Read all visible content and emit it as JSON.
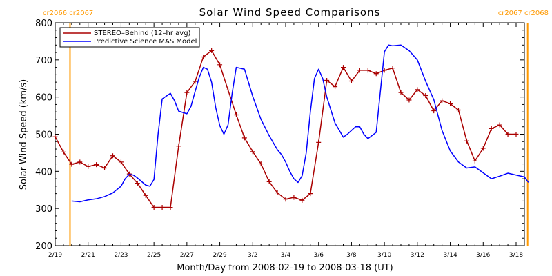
{
  "chart_data": {
    "type": "line",
    "title": "Solar Wind Speed Comparisons",
    "xlabel": "Month/Day from 2008-02-19 to 2008-03-18 (UT)",
    "ylabel": "Solar Wind Speed (km/s)",
    "xlim": [
      0,
      28
    ],
    "ylim": [
      200,
      800
    ],
    "x_ticks": [
      {
        "day": 0,
        "label": "2/19"
      },
      {
        "day": 2,
        "label": "2/21"
      },
      {
        "day": 4,
        "label": "2/23"
      },
      {
        "day": 6,
        "label": "2/25"
      },
      {
        "day": 8,
        "label": "2/27"
      },
      {
        "day": 10,
        "label": "2/29"
      },
      {
        "day": 12,
        "label": "3/2"
      },
      {
        "day": 14,
        "label": "3/4"
      },
      {
        "day": 16,
        "label": "3/6"
      },
      {
        "day": 18,
        "label": "3/8"
      },
      {
        "day": 20,
        "label": "3/10"
      },
      {
        "day": 22,
        "label": "3/12"
      },
      {
        "day": 24,
        "label": "3/14"
      },
      {
        "day": 26,
        "label": "3/16"
      },
      {
        "day": 28,
        "label": "3/18"
      }
    ],
    "y_ticks": [
      200,
      300,
      400,
      500,
      600,
      700,
      800
    ],
    "legend_position": "top-left",
    "carrington_markers": [
      {
        "day": 0.9,
        "left_label": "cr2066",
        "right_label": "cr2067",
        "label_side": "top-left",
        "color": "#ff9900"
      },
      {
        "day": 28.7,
        "left_label": "cr2067",
        "right_label": "cr2068",
        "label_side": "top-right",
        "color": "#ff9900"
      }
    ],
    "series": [
      {
        "name": "STEREO–Behind (12–hr avg)",
        "color": "#aa0000",
        "markers": true,
        "x": [
          0.0,
          0.5,
          1.0,
          1.5,
          2.0,
          2.5,
          3.0,
          3.5,
          4.0,
          4.5,
          5.0,
          5.5,
          6.0,
          6.5,
          7.0,
          7.5,
          8.0,
          8.5,
          9.0,
          9.5,
          10.0,
          10.5,
          11.0,
          11.5,
          12.0,
          12.5,
          13.0,
          13.5,
          14.0,
          14.5,
          15.0,
          15.5,
          16.0,
          16.5,
          17.0,
          17.5,
          18.0,
          18.5,
          19.0,
          19.5,
          20.0,
          20.5,
          21.0,
          21.5,
          22.0,
          22.5,
          23.0,
          23.5,
          24.0,
          24.5,
          25.0,
          25.5,
          26.0,
          26.5,
          27.0,
          27.5,
          28.0,
          28.5
        ],
        "values": [
          493,
          452,
          419,
          425,
          413,
          418,
          409,
          442,
          425,
          393,
          368,
          335,
          303,
          303,
          303,
          468,
          612,
          642,
          708,
          725,
          687,
          619,
          552,
          490,
          453,
          420,
          372,
          342,
          325,
          330,
          322,
          340,
          478,
          645,
          628,
          680,
          643,
          672,
          672,
          663,
          672,
          678,
          612,
          592,
          620,
          604,
          563,
          590,
          582,
          565,
          482,
          428,
          462,
          515,
          525,
          500,
          500,
          null
        ]
      },
      {
        "name": "Predictive Science MAS Model",
        "color": "#0000ff",
        "markers": false,
        "x": [
          1.0,
          1.5,
          2.0,
          2.5,
          3.0,
          3.5,
          4.0,
          4.25,
          4.5,
          4.75,
          5.0,
          5.5,
          5.75,
          6.0,
          6.25,
          6.5,
          7.0,
          7.25,
          7.5,
          8.0,
          8.25,
          8.5,
          8.75,
          9.0,
          9.25,
          9.5,
          9.75,
          10.0,
          10.25,
          10.5,
          10.75,
          11.0,
          11.5,
          12.0,
          12.5,
          13.0,
          13.5,
          13.75,
          14.0,
          14.25,
          14.5,
          14.75,
          15.0,
          15.25,
          15.5,
          15.75,
          16.0,
          16.25,
          16.5,
          17.0,
          17.5,
          17.75,
          18.0,
          18.25,
          18.5,
          18.75,
          19.0,
          19.5,
          20.0,
          20.25,
          20.5,
          21.0,
          21.5,
          22.0,
          22.5,
          23.0,
          23.5,
          24.0,
          24.5,
          25.0,
          25.5,
          26.0,
          26.5,
          27.0,
          27.5,
          28.0,
          28.5,
          28.75
        ],
        "values": [
          320,
          318,
          323,
          326,
          332,
          342,
          360,
          380,
          392,
          390,
          382,
          363,
          360,
          378,
          500,
          595,
          610,
          590,
          562,
          555,
          575,
          615,
          653,
          680,
          675,
          640,
          572,
          523,
          500,
          525,
          610,
          680,
          675,
          602,
          540,
          496,
          458,
          445,
          425,
          400,
          380,
          370,
          388,
          450,
          560,
          650,
          675,
          650,
          600,
          530,
          492,
          500,
          510,
          520,
          520,
          500,
          488,
          505,
          722,
          740,
          738,
          740,
          725,
          700,
          643,
          593,
          510,
          455,
          425,
          409,
          412,
          396,
          380,
          387,
          395,
          390,
          385,
          370
        ]
      }
    ]
  }
}
